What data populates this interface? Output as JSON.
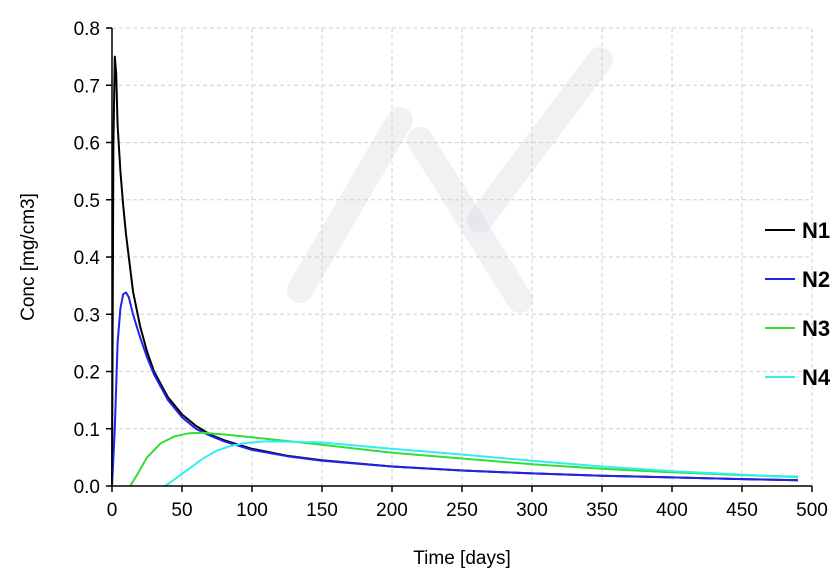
{
  "chart_data": {
    "type": "line",
    "title": "",
    "xlabel": "Time [days]",
    "ylabel": "Conc [mg/cm3]",
    "xlim": [
      0,
      500
    ],
    "ylim": [
      0,
      0.8
    ],
    "xticks": [
      0,
      50,
      100,
      150,
      200,
      250,
      300,
      350,
      400,
      450,
      500
    ],
    "xtick_labels": [
      "0",
      "50",
      "100",
      "150",
      "200",
      "250",
      "300",
      "350",
      "400",
      "450",
      "500"
    ],
    "yticks": [
      0,
      0.1,
      0.2,
      0.3,
      0.4,
      0.5,
      0.6,
      0.7,
      0.8
    ],
    "ytick_labels": [
      "0.0",
      "0.1",
      "0.2",
      "0.3",
      "0.4",
      "0.5",
      "0.6",
      "0.7",
      "0.8"
    ],
    "grid": true,
    "legend_position": "right",
    "series": [
      {
        "name": "N1",
        "color": "#000000",
        "points": [
          [
            0,
            0
          ],
          [
            1,
            0.6
          ],
          [
            2,
            0.75
          ],
          [
            3,
            0.72
          ],
          [
            4,
            0.63
          ],
          [
            6,
            0.55
          ],
          [
            8,
            0.49
          ],
          [
            10,
            0.44
          ],
          [
            15,
            0.34
          ],
          [
            20,
            0.28
          ],
          [
            25,
            0.235
          ],
          [
            30,
            0.2
          ],
          [
            40,
            0.155
          ],
          [
            50,
            0.125
          ],
          [
            60,
            0.105
          ],
          [
            70,
            0.09
          ],
          [
            80,
            0.08
          ],
          [
            100,
            0.065
          ],
          [
            125,
            0.053
          ],
          [
            150,
            0.045
          ],
          [
            200,
            0.034
          ],
          [
            250,
            0.027
          ],
          [
            300,
            0.022
          ],
          [
            350,
            0.018
          ],
          [
            400,
            0.015
          ],
          [
            450,
            0.012
          ],
          [
            490,
            0.01
          ]
        ]
      },
      {
        "name": "N2",
        "color": "#2222ee",
        "points": [
          [
            0,
            0
          ],
          [
            2,
            0.1
          ],
          [
            4,
            0.25
          ],
          [
            6,
            0.31
          ],
          [
            8,
            0.335
          ],
          [
            10,
            0.338
          ],
          [
            12,
            0.33
          ],
          [
            15,
            0.3
          ],
          [
            20,
            0.26
          ],
          [
            25,
            0.225
          ],
          [
            30,
            0.195
          ],
          [
            40,
            0.15
          ],
          [
            50,
            0.12
          ],
          [
            60,
            0.1
          ],
          [
            70,
            0.088
          ],
          [
            80,
            0.078
          ],
          [
            100,
            0.063
          ],
          [
            125,
            0.052
          ],
          [
            150,
            0.044
          ],
          [
            200,
            0.034
          ],
          [
            250,
            0.027
          ],
          [
            300,
            0.022
          ],
          [
            350,
            0.018
          ],
          [
            400,
            0.015
          ],
          [
            450,
            0.012
          ],
          [
            490,
            0.01
          ]
        ]
      },
      {
        "name": "N3",
        "color": "#33dd33",
        "points": [
          [
            13,
            0
          ],
          [
            18,
            0.02
          ],
          [
            25,
            0.05
          ],
          [
            35,
            0.075
          ],
          [
            45,
            0.087
          ],
          [
            55,
            0.092
          ],
          [
            65,
            0.093
          ],
          [
            80,
            0.09
          ],
          [
            100,
            0.085
          ],
          [
            150,
            0.072
          ],
          [
            200,
            0.058
          ],
          [
            250,
            0.048
          ],
          [
            300,
            0.038
          ],
          [
            350,
            0.03
          ],
          [
            400,
            0.024
          ],
          [
            450,
            0.019
          ],
          [
            490,
            0.016
          ]
        ]
      },
      {
        "name": "N4",
        "color": "#33eeee",
        "points": [
          [
            38,
            0
          ],
          [
            45,
            0.012
          ],
          [
            55,
            0.03
          ],
          [
            65,
            0.048
          ],
          [
            75,
            0.062
          ],
          [
            85,
            0.07
          ],
          [
            95,
            0.075
          ],
          [
            110,
            0.078
          ],
          [
            130,
            0.077
          ],
          [
            150,
            0.076
          ],
          [
            200,
            0.065
          ],
          [
            250,
            0.055
          ],
          [
            300,
            0.044
          ],
          [
            350,
            0.034
          ],
          [
            400,
            0.026
          ],
          [
            450,
            0.02
          ],
          [
            490,
            0.015
          ]
        ]
      }
    ]
  }
}
